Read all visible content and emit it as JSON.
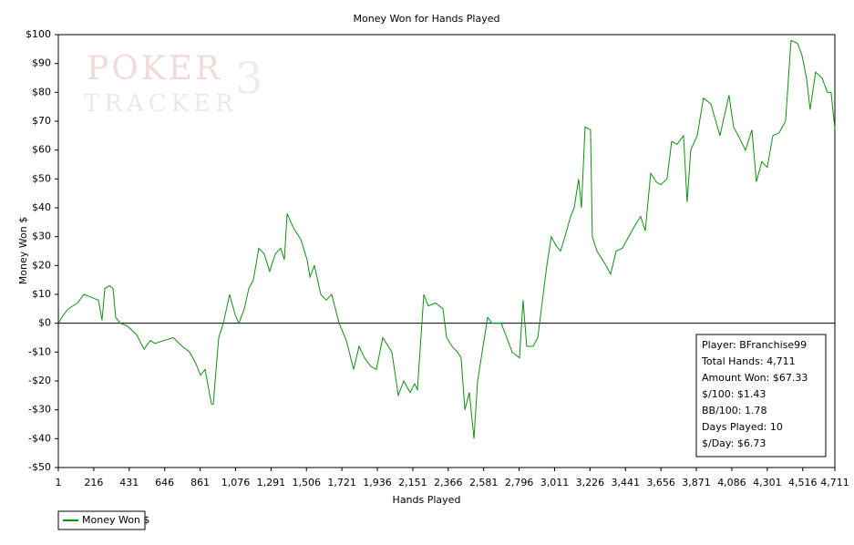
{
  "chart_data": {
    "type": "line",
    "title": "Money Won for Hands Played",
    "x_label": "Hands Played",
    "y_label": "Money Won $",
    "watermark": [
      "POKER",
      "TRACKER",
      "3"
    ],
    "x": [
      1,
      34,
      62,
      117,
      156,
      200,
      244,
      266,
      283,
      311,
      333,
      349,
      377,
      421,
      476,
      521,
      559,
      587,
      642,
      698,
      753,
      797,
      836,
      863,
      891,
      930,
      941,
      952,
      974,
      1002,
      1040,
      1073,
      1096,
      1129,
      1156,
      1184,
      1217,
      1250,
      1283,
      1317,
      1350,
      1372,
      1389,
      1427,
      1472,
      1510,
      1527,
      1554,
      1593,
      1626,
      1659,
      1704,
      1748,
      1792,
      1825,
      1858,
      1897,
      1930,
      1969,
      2024,
      2063,
      2096,
      2135,
      2162,
      2179,
      2218,
      2245,
      2289,
      2334,
      2356,
      2389,
      2422,
      2444,
      2467,
      2494,
      2522,
      2544,
      2577,
      2605,
      2632,
      2687,
      2721,
      2754,
      2798,
      2820,
      2842,
      2881,
      2909,
      2942,
      2964,
      2991,
      3019,
      3047,
      3074,
      3108,
      3130,
      3157,
      3174,
      3196,
      3229,
      3240,
      3268,
      3323,
      3351,
      3384,
      3422,
      3461,
      3500,
      3533,
      3561,
      3594,
      3627,
      3655,
      3693,
      3721,
      3754,
      3793,
      3815,
      3837,
      3876,
      3914,
      3959,
      4014,
      4069,
      4097,
      4125,
      4169,
      4208,
      4235,
      4268,
      4301,
      4335,
      4373,
      4412,
      4445,
      4484,
      4511,
      4539,
      4561,
      4594,
      4633,
      4666,
      4688,
      4711
    ],
    "series": [
      {
        "name": "Money Won $",
        "color": "#109010",
        "values": [
          0,
          3,
          5,
          7,
          10,
          9,
          8,
          1,
          12,
          13,
          12,
          2,
          0,
          -1,
          -4,
          -9,
          -6,
          -7,
          -6,
          -5,
          -8,
          -10,
          -14,
          -18,
          -16,
          -28,
          -28,
          -20,
          -5,
          0,
          10,
          3,
          0,
          5,
          12,
          15,
          26,
          24,
          18,
          24,
          26,
          22,
          38,
          33,
          29,
          22,
          16,
          20,
          10,
          8,
          10,
          0,
          -6,
          -16,
          -8,
          -12,
          -15,
          -16,
          -5,
          -10,
          -25,
          -20,
          -24,
          -21,
          -23,
          10,
          6,
          7,
          5,
          -5,
          -8,
          -10,
          -12,
          -30,
          -24,
          -40,
          -20,
          -8,
          2,
          0,
          0,
          -5,
          -10,
          -12,
          8,
          -8,
          -8,
          -5,
          10,
          20,
          30,
          27,
          25,
          30,
          37,
          40,
          50,
          40,
          68,
          67,
          30,
          25,
          20,
          17,
          25,
          26,
          30,
          34,
          37,
          32,
          52,
          49,
          48,
          50,
          63,
          62,
          65,
          42,
          60,
          65,
          78,
          76,
          65,
          79,
          68,
          65,
          60,
          67,
          49,
          56,
          54,
          65,
          66,
          70,
          98,
          97,
          93,
          85,
          74,
          87,
          85,
          80,
          80,
          67.33
        ]
      }
    ],
    "xlim": [
      1,
      4711
    ],
    "ylim": [
      -50,
      100
    ],
    "xticks": [
      1,
      216,
      431,
      646,
      861,
      {
        "value": 1076,
        "label": "1,076"
      },
      {
        "value": 1291,
        "label": "1,291"
      },
      {
        "value": 1506,
        "label": "1,506"
      },
      {
        "value": 1721,
        "label": "1,721"
      },
      {
        "value": 1936,
        "label": "1,936"
      },
      {
        "value": 2151,
        "label": "2,151"
      },
      {
        "value": 2366,
        "label": "2,366"
      },
      {
        "value": 2581,
        "label": "2,581"
      },
      {
        "value": 2796,
        "label": "2,796"
      },
      {
        "value": 3011,
        "label": "3,011"
      },
      {
        "value": 3226,
        "label": "3,226"
      },
      {
        "value": 3441,
        "label": "3,441"
      },
      {
        "value": 3656,
        "label": "3,656"
      },
      {
        "value": 3871,
        "label": "3,871"
      },
      {
        "value": 4086,
        "label": "4,086"
      },
      {
        "value": 4301,
        "label": "4,301"
      },
      {
        "value": 4516,
        "label": "4,516"
      },
      {
        "value": 4711,
        "label": "4,711"
      }
    ],
    "yticks": [
      {
        "value": -50,
        "label": "-$50"
      },
      {
        "value": -40,
        "label": "-$40"
      },
      {
        "value": -30,
        "label": "-$30"
      },
      {
        "value": -20,
        "label": "-$20"
      },
      {
        "value": -10,
        "label": "-$10"
      },
      {
        "value": 0,
        "label": "$0"
      },
      {
        "value": 10,
        "label": "$10"
      },
      {
        "value": 20,
        "label": "$20"
      },
      {
        "value": 30,
        "label": "$30"
      },
      {
        "value": 40,
        "label": "$40"
      },
      {
        "value": 50,
        "label": "$50"
      },
      {
        "value": 60,
        "label": "$60"
      },
      {
        "value": 70,
        "label": "$70"
      },
      {
        "value": 80,
        "label": "$80"
      },
      {
        "value": 90,
        "label": "$90"
      },
      {
        "value": 100,
        "label": "$100"
      }
    ],
    "stats": [
      "Player: BFranchise99",
      "Total Hands: 4,711",
      "Amount Won: $67.33",
      "$/100: $1.43",
      "BB/100: 1.78",
      "Days Played: 10",
      "$/Day: $6.73"
    ],
    "grid": false,
    "legend": "bottom-left"
  }
}
